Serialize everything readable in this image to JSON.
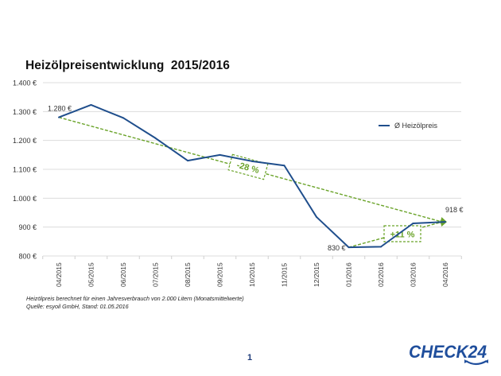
{
  "chart_data": {
    "type": "line",
    "title": "Heizölpreisentwicklung  2015/2016",
    "xlabel": "",
    "ylabel": "",
    "categories": [
      "04/2015",
      "05/2015",
      "06/2015",
      "07/2015",
      "08/2015",
      "09/2015",
      "10/2015",
      "11/2015",
      "12/2015",
      "01/2016",
      "02/2016",
      "03/2016",
      "04/2016"
    ],
    "series": [
      {
        "name": "Ø Heizölpreis",
        "color": "#1f4e8c",
        "values": [
          1280,
          1323,
          1278,
          1208,
          1130,
          1150,
          1128,
          1113,
          935,
          830,
          832,
          913,
          918
        ]
      }
    ],
    "ylim": [
      800,
      1400
    ],
    "yticks": [
      800,
      900,
      1000,
      1100,
      1200,
      1300,
      1400
    ],
    "ytick_labels": [
      "800 €",
      "900 €",
      "1.000 €",
      "1.100 €",
      "1.200 €",
      "1.300 €",
      "1.400 €"
    ],
    "grid": true,
    "legend_position": "right",
    "data_labels": [
      {
        "category": "04/2015",
        "value": 1280,
        "text": "1.280 €"
      },
      {
        "category": "01/2016",
        "value": 830,
        "text": "830 €"
      },
      {
        "category": "04/2016",
        "value": 918,
        "text": "918 €"
      }
    ],
    "annotations": [
      {
        "from": "04/2015",
        "to": "04/2016",
        "from_value": 1280,
        "to_value": 918,
        "text": "-28 %",
        "color": "#6aa329"
      },
      {
        "from": "01/2016",
        "to": "04/2016",
        "from_value": 830,
        "to_value": 918,
        "text": "+11 %",
        "color": "#6aa329"
      }
    ]
  },
  "footnotes": {
    "line1": "Heizölpreis berechnet für einen Jahresverbrauch von 2.000 Litern (Monatsmittelwerte)",
    "line2": "Quelle: esyoil GmbH, Stand: 01.05.2016"
  },
  "page_number": "1",
  "logo": {
    "text": "CHECK24",
    "color": "#1f4e9c"
  }
}
